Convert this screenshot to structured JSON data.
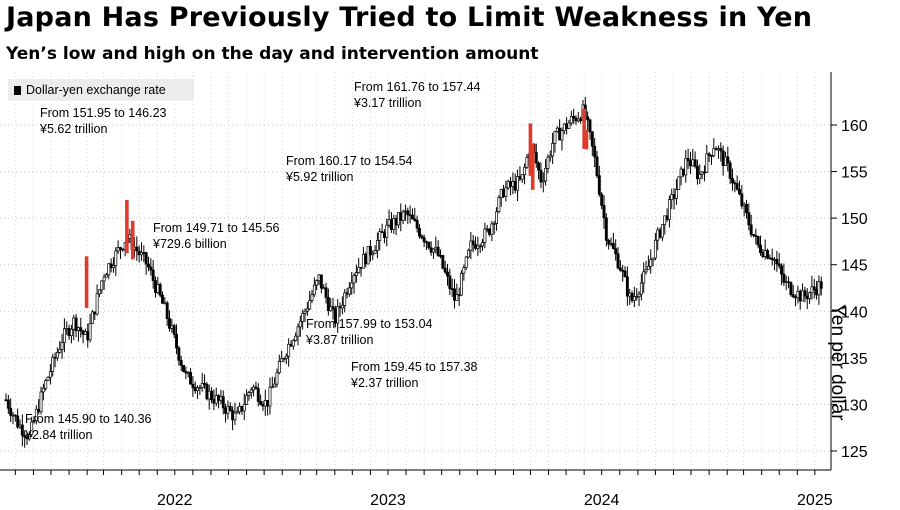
{
  "chart_data": {
    "type": "candlestick",
    "title": "Japan Has Previously Tried to Limit Weakness in Yen",
    "subtitle": "Yen’s low and high on the day and intervention amount",
    "legend": "Dollar-yen exchange rate",
    "ylabel": "Yen per dollar",
    "ylim": [
      122,
      166
    ],
    "y_ticks": [
      125,
      130,
      135,
      140,
      145,
      150,
      155,
      160
    ],
    "x_ticks": [
      "2022",
      "2023",
      "2024",
      "2025"
    ],
    "y_axis_side": "right",
    "grid": true,
    "x_range": [
      "2021-09-15",
      "2025-07-15"
    ],
    "series_color": "#000000",
    "intervention_color": "#e03a2c",
    "rate_path": [
      [
        "2021-09-15",
        130.5
      ],
      [
        "2021-10-05",
        128.0
      ],
      [
        "2021-10-25",
        126.5
      ],
      [
        "2021-11-20",
        132.0
      ],
      [
        "2021-12-20",
        137.0
      ],
      [
        "2022-01-10",
        139.0
      ],
      [
        "2022-01-31",
        137.0
      ],
      [
        "2022-03-01",
        144.0
      ],
      [
        "2022-04-10",
        148.0
      ],
      [
        "2022-05-15",
        145.0
      ],
      [
        "2022-06-15",
        140.0
      ],
      [
        "2022-07-20",
        133.0
      ],
      [
        "2022-08-20",
        131.5
      ],
      [
        "2022-09-20",
        130.0
      ],
      [
        "2022-10-15",
        128.5
      ],
      [
        "2022-11-10",
        132.0
      ],
      [
        "2022-12-05",
        130.0
      ],
      [
        "2023-01-05",
        135.5
      ],
      [
        "2023-02-05",
        139.5
      ],
      [
        "2023-03-05",
        143.5
      ],
      [
        "2023-04-01",
        139.0
      ],
      [
        "2023-05-01",
        144.0
      ],
      [
        "2023-06-01",
        146.5
      ],
      [
        "2023-07-01",
        149.0
      ],
      [
        "2023-08-01",
        150.5
      ],
      [
        "2023-09-01",
        148.0
      ],
      [
        "2023-09-25",
        146.0
      ],
      [
        "2023-10-25",
        141.0
      ],
      [
        "2023-11-20",
        147.0
      ],
      [
        "2023-12-20",
        148.5
      ],
      [
        "2024-01-15",
        153.0
      ],
      [
        "2024-02-15",
        154.0
      ],
      [
        "2024-03-01",
        158.0
      ],
      [
        "2024-03-20",
        154.0
      ],
      [
        "2024-04-10",
        158.5
      ],
      [
        "2024-05-10",
        160.5
      ],
      [
        "2024-06-01",
        161.5
      ],
      [
        "2024-06-20",
        156.0
      ],
      [
        "2024-07-10",
        148.0
      ],
      [
        "2024-08-01",
        145.0
      ],
      [
        "2024-08-20",
        141.0
      ],
      [
        "2024-09-15",
        144.0
      ],
      [
        "2024-10-05",
        148.0
      ],
      [
        "2024-11-05",
        153.0
      ],
      [
        "2024-11-25",
        156.5
      ],
      [
        "2024-12-15",
        154.5
      ],
      [
        "2025-01-10",
        158.0
      ],
      [
        "2025-02-05",
        155.0
      ],
      [
        "2025-03-01",
        151.0
      ],
      [
        "2025-03-25",
        147.0
      ],
      [
        "2025-04-20",
        146.0
      ],
      [
        "2025-05-10",
        143.0
      ],
      [
        "2025-06-10",
        141.5
      ],
      [
        "2025-07-15",
        143.0
      ]
    ],
    "interventions": [
      {
        "date": "2022-01-31",
        "high": 145.9,
        "low": 140.36,
        "amount": "¥2.84 trillion"
      },
      {
        "date": "2022-04-10",
        "high": 151.95,
        "low": 146.23,
        "amount": "¥5.62 trillion"
      },
      {
        "date": "2022-04-20",
        "high": 149.71,
        "low": 145.56,
        "amount": "¥729.6 billion"
      },
      {
        "date": "2024-03-01",
        "high": 160.17,
        "low": 154.54,
        "amount": "¥5.92 trillion"
      },
      {
        "date": "2024-03-05",
        "high": 157.99,
        "low": 153.04,
        "amount": "¥3.87 trillion"
      },
      {
        "date": "2024-06-01",
        "high": 161.76,
        "low": 157.44,
        "amount": "¥3.17 trillion"
      },
      {
        "date": "2024-06-05",
        "high": 159.45,
        "low": 157.38,
        "amount": "¥2.37 trillion"
      }
    ],
    "annotations": [
      {
        "range": "From 145.90 to 140.36",
        "amount": "¥2.84 trillion"
      },
      {
        "range": "From 151.95 to 146.23",
        "amount": "¥5.62 trillion"
      },
      {
        "range": "From 149.71 to 145.56",
        "amount": "¥729.6 billion"
      },
      {
        "range": "From 160.17 to 154.54",
        "amount": "¥5.92 trillion"
      },
      {
        "range": "From 157.99 to 153.04",
        "amount": "¥3.87 trillion"
      },
      {
        "range": "From 161.76 to 157.44",
        "amount": "¥3.17 trillion"
      },
      {
        "range": "From 159.45 to 157.38",
        "amount": "¥2.37 trillion"
      }
    ]
  }
}
